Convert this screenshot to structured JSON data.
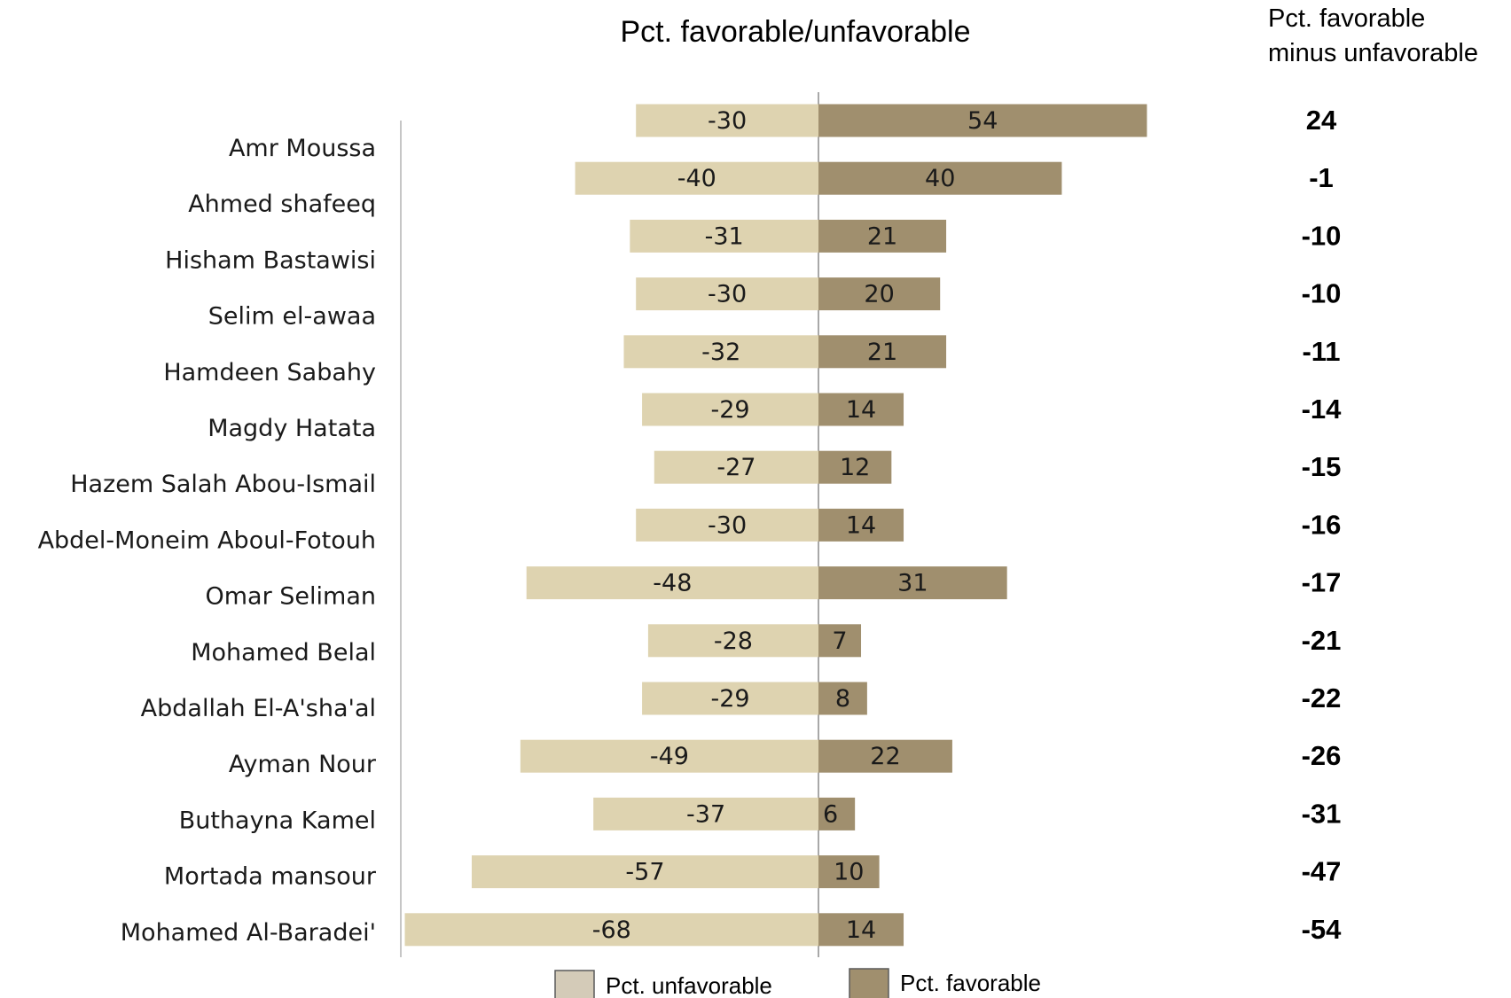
{
  "chart_data": {
    "type": "bar",
    "orientation": "horizontal-diverging",
    "title": "Pct. favorable/unfavorable",
    "difference_header": [
      "Pct. favorable",
      "minus unfavorable"
    ],
    "categories": [
      "Amr Moussa",
      "Ahmed shafeeq",
      "Hisham Bastawisi",
      "Selim el-awaa",
      "Hamdeen Sabahy",
      "Magdy Hatata",
      "Hazem Salah Abou-Ismail",
      "Abdel-Moneim Aboul-Fotouh",
      "Omar Seliman",
      "Mohamed Belal",
      "Abdallah El-A'sha'al",
      "Ayman Nour",
      "Buthayna Kamel",
      "Mortada mansour",
      "Mohamed Al-Baradei'"
    ],
    "series": [
      {
        "name": "Pct. unfavorable",
        "color": "#ded3b0",
        "values": [
          -30,
          -40,
          -31,
          -30,
          -32,
          -29,
          -27,
          -30,
          -48,
          -28,
          -29,
          -49,
          -37,
          -57,
          -68
        ]
      },
      {
        "name": "Pct. favorable",
        "color": "#a08f6e",
        "values": [
          54,
          40,
          21,
          20,
          21,
          14,
          12,
          14,
          31,
          7,
          8,
          22,
          6,
          10,
          14
        ]
      }
    ],
    "difference_values": [
      "24",
      "-1",
      "-10",
      "-10",
      "-11",
      "-14",
      "-15",
      "-16",
      "-17",
      "-21",
      "-22",
      "-26",
      "-31",
      "-47",
      "-54"
    ],
    "legend": {
      "items": [
        {
          "label": "Pct. unfavorable",
          "color": "#d4cbb8"
        },
        {
          "label": "Pct. favorable",
          "color": "#a08f6e"
        }
      ],
      "placement": "bottom"
    },
    "grid": false
  }
}
